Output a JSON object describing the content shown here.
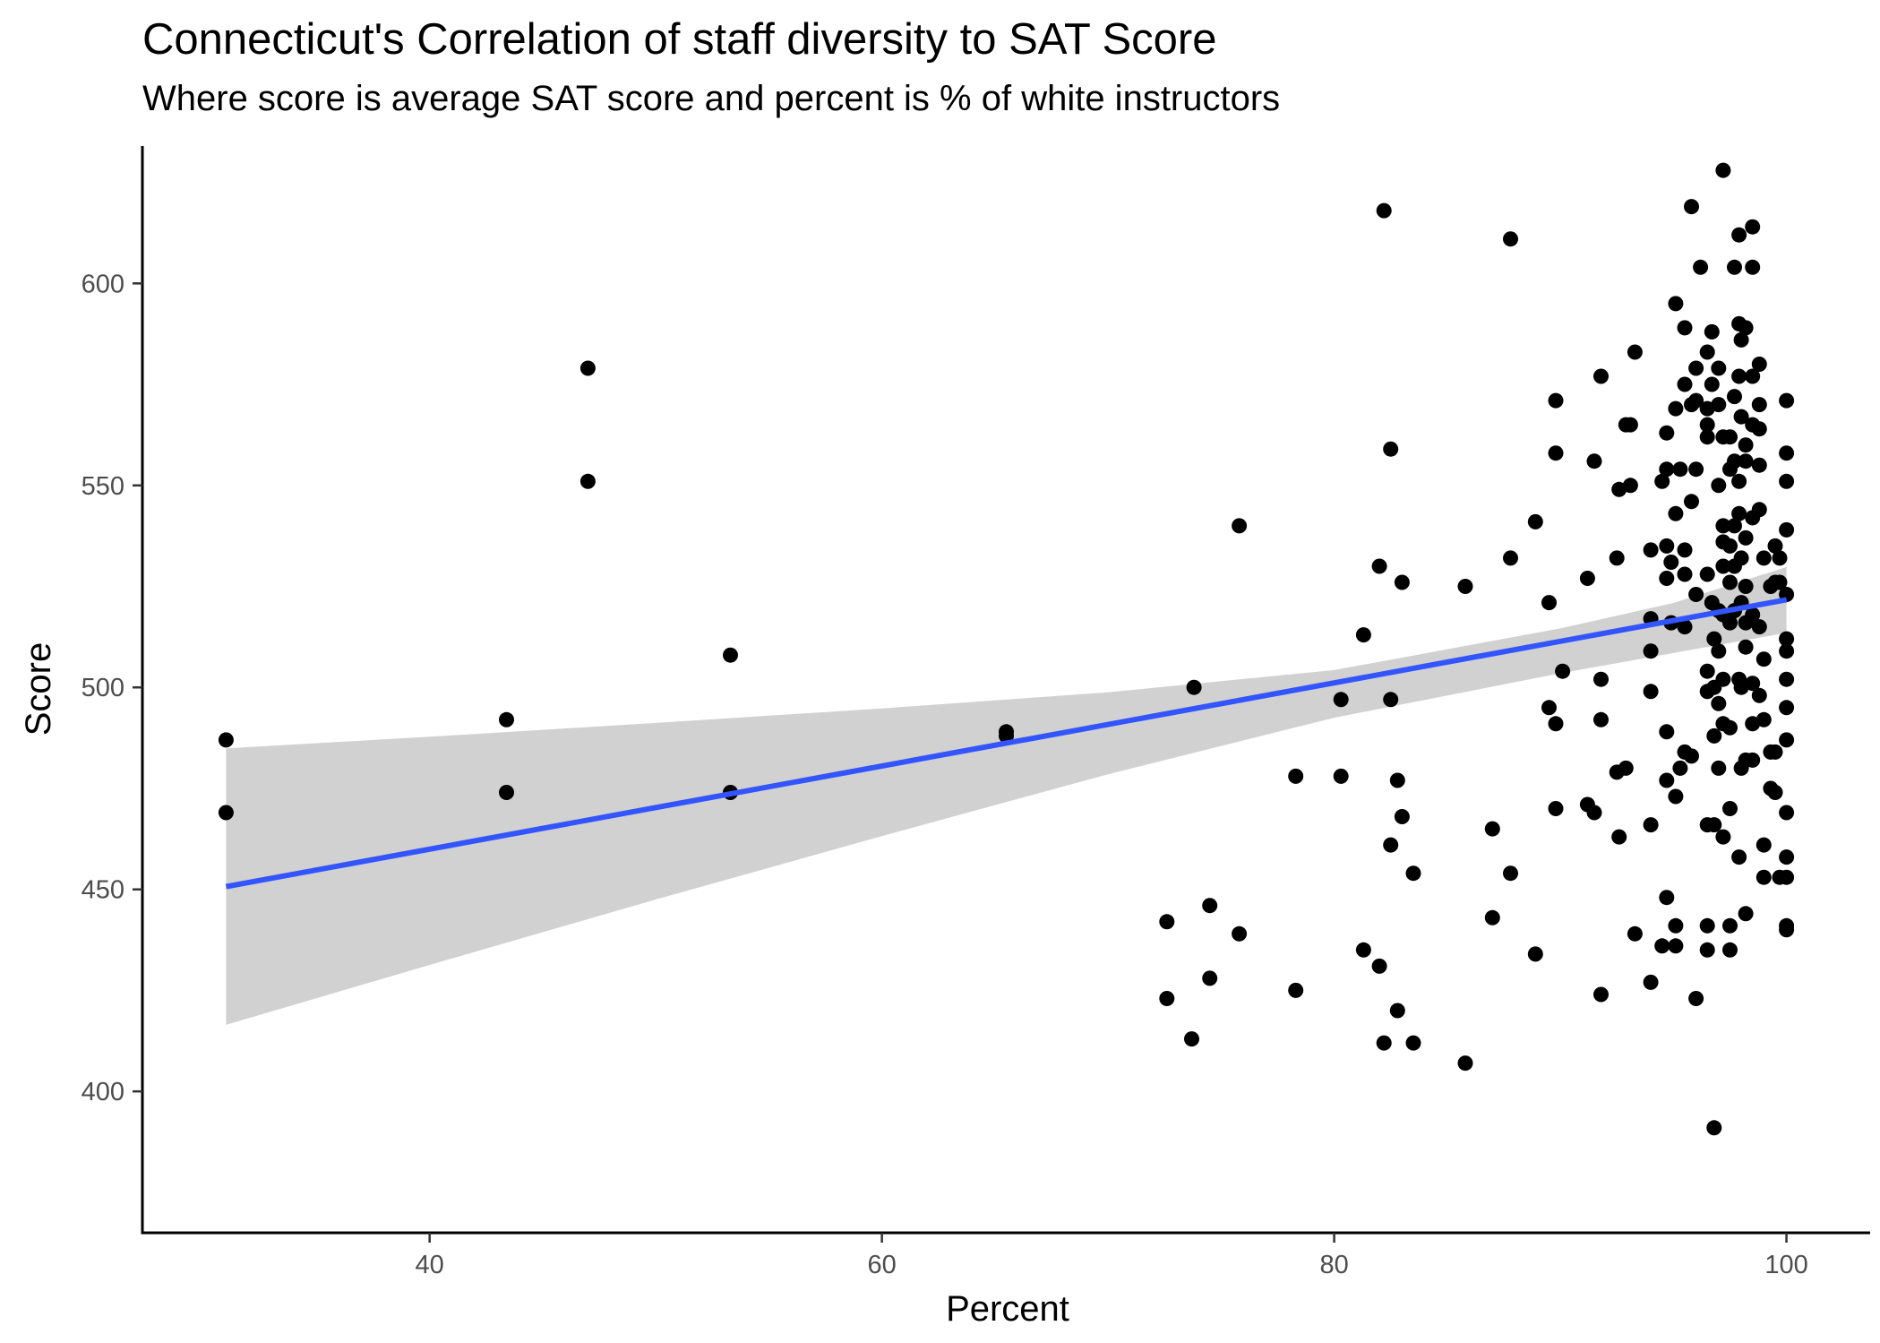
{
  "chart_data": {
    "type": "scatter",
    "title": "Connecticut's Correlation of staff diversity to SAT Score",
    "subtitle": "Where score is average SAT score and percent is % of white instructors",
    "xlabel": "Percent",
    "ylabel": "Score",
    "xlim": [
      27.3,
      103.7
    ],
    "ylim": [
      365,
      634
    ],
    "xticks": [
      40,
      60,
      80,
      100
    ],
    "yticks": [
      400,
      450,
      500,
      550,
      600
    ],
    "grid": false,
    "points": [
      [
        31,
        487
      ],
      [
        31,
        469
      ],
      [
        43.4,
        492
      ],
      [
        43.4,
        474
      ],
      [
        47,
        579
      ],
      [
        47,
        551
      ],
      [
        53.3,
        508
      ],
      [
        53.3,
        474
      ],
      [
        65.5,
        489
      ],
      [
        65.5,
        488
      ],
      [
        73.8,
        500
      ],
      [
        72.6,
        442
      ],
      [
        72.6,
        423
      ],
      [
        73.7,
        413
      ],
      [
        74.5,
        446
      ],
      [
        74.5,
        428
      ],
      [
        75.8,
        540
      ],
      [
        75.8,
        439
      ],
      [
        78.3,
        478
      ],
      [
        78.3,
        425
      ],
      [
        80.3,
        497
      ],
      [
        80.3,
        478
      ],
      [
        81.3,
        513
      ],
      [
        81.3,
        435
      ],
      [
        82,
        530
      ],
      [
        82,
        431
      ],
      [
        82.2,
        618
      ],
      [
        82.2,
        412
      ],
      [
        82.5,
        559
      ],
      [
        82.5,
        497
      ],
      [
        82.5,
        461
      ],
      [
        82.8,
        477
      ],
      [
        82.8,
        420
      ],
      [
        83,
        526
      ],
      [
        83,
        468
      ],
      [
        83.5,
        454
      ],
      [
        83.5,
        412
      ],
      [
        85.8,
        525
      ],
      [
        85.8,
        407
      ],
      [
        87,
        465
      ],
      [
        87,
        443
      ],
      [
        87.8,
        611
      ],
      [
        87.8,
        532
      ],
      [
        87.8,
        454
      ],
      [
        88.9,
        541
      ],
      [
        88.9,
        434
      ],
      [
        89.5,
        521
      ],
      [
        89.5,
        495
      ],
      [
        89.8,
        571
      ],
      [
        89.8,
        558
      ],
      [
        89.8,
        491
      ],
      [
        89.8,
        470
      ],
      [
        90.1,
        504
      ],
      [
        91.2,
        527
      ],
      [
        91.2,
        471
      ],
      [
        91.5,
        556
      ],
      [
        91.5,
        469
      ],
      [
        91.8,
        577
      ],
      [
        91.8,
        502
      ],
      [
        91.8,
        492
      ],
      [
        91.8,
        424
      ],
      [
        92.5,
        532
      ],
      [
        92.5,
        479
      ],
      [
        92.6,
        549
      ],
      [
        92.6,
        463
      ],
      [
        92.9,
        565
      ],
      [
        92.9,
        480
      ],
      [
        93.1,
        550
      ],
      [
        93.1,
        565
      ],
      [
        93.3,
        583
      ],
      [
        93.3,
        439
      ],
      [
        94,
        534
      ],
      [
        94,
        509
      ],
      [
        94,
        499
      ],
      [
        94,
        466
      ],
      [
        94,
        427
      ],
      [
        94,
        517
      ],
      [
        94.5,
        551
      ],
      [
        94.5,
        436
      ],
      [
        94.7,
        563
      ],
      [
        94.7,
        554
      ],
      [
        94.7,
        535
      ],
      [
        94.7,
        527
      ],
      [
        94.7,
        489
      ],
      [
        94.7,
        477
      ],
      [
        94.7,
        448
      ],
      [
        94.9,
        531
      ],
      [
        94.9,
        516
      ],
      [
        95.1,
        595
      ],
      [
        95.1,
        569
      ],
      [
        95.1,
        543
      ],
      [
        95.1,
        473
      ],
      [
        95.1,
        441
      ],
      [
        95.1,
        436
      ],
      [
        95.3,
        554
      ],
      [
        95.3,
        480
      ],
      [
        95.5,
        589
      ],
      [
        95.5,
        575
      ],
      [
        95.5,
        534
      ],
      [
        95.5,
        528
      ],
      [
        95.5,
        515
      ],
      [
        95.5,
        484
      ],
      [
        95.8,
        570
      ],
      [
        95.8,
        546
      ],
      [
        95.8,
        483
      ],
      [
        95.8,
        619
      ],
      [
        96,
        579
      ],
      [
        96,
        571
      ],
      [
        96,
        554
      ],
      [
        96,
        523
      ],
      [
        96,
        423
      ],
      [
        96.2,
        604
      ],
      [
        96.5,
        583
      ],
      [
        96.5,
        569
      ],
      [
        96.5,
        565
      ],
      [
        96.5,
        562
      ],
      [
        96.5,
        528
      ],
      [
        96.5,
        504
      ],
      [
        96.5,
        499
      ],
      [
        96.5,
        466
      ],
      [
        96.5,
        441
      ],
      [
        96.5,
        435
      ],
      [
        96.7,
        588
      ],
      [
        96.7,
        575
      ],
      [
        96.7,
        521
      ],
      [
        96.8,
        512
      ],
      [
        96.8,
        500
      ],
      [
        96.8,
        488
      ],
      [
        96.8,
        466
      ],
      [
        96.8,
        391
      ],
      [
        97,
        579
      ],
      [
        97,
        570
      ],
      [
        97,
        550
      ],
      [
        97,
        509
      ],
      [
        97,
        496
      ],
      [
        97,
        480
      ],
      [
        97,
        519
      ],
      [
        97.2,
        628
      ],
      [
        97.2,
        562
      ],
      [
        97.2,
        540
      ],
      [
        97.2,
        536
      ],
      [
        97.2,
        530
      ],
      [
        97.2,
        518
      ],
      [
        97.2,
        502
      ],
      [
        97.2,
        491
      ],
      [
        97.2,
        463
      ],
      [
        97.5,
        562
      ],
      [
        97.5,
        554
      ],
      [
        97.5,
        535
      ],
      [
        97.5,
        526
      ],
      [
        97.5,
        516
      ],
      [
        97.5,
        490
      ],
      [
        97.5,
        470
      ],
      [
        97.5,
        435
      ],
      [
        97.5,
        441
      ],
      [
        97.7,
        604
      ],
      [
        97.7,
        572
      ],
      [
        97.7,
        556
      ],
      [
        97.7,
        540
      ],
      [
        97.7,
        530
      ],
      [
        97.7,
        519
      ],
      [
        97.9,
        612
      ],
      [
        97.9,
        590
      ],
      [
        97.9,
        577
      ],
      [
        97.9,
        551
      ],
      [
        97.9,
        543
      ],
      [
        97.9,
        502
      ],
      [
        97.9,
        458
      ],
      [
        98,
        586
      ],
      [
        98,
        567
      ],
      [
        98,
        532
      ],
      [
        98,
        521
      ],
      [
        98,
        500
      ],
      [
        98,
        480
      ],
      [
        98.2,
        589
      ],
      [
        98.2,
        560
      ],
      [
        98.2,
        556
      ],
      [
        98.2,
        537
      ],
      [
        98.2,
        525
      ],
      [
        98.2,
        516
      ],
      [
        98.2,
        510
      ],
      [
        98.2,
        482
      ],
      [
        98.2,
        444
      ],
      [
        98.5,
        614
      ],
      [
        98.5,
        604
      ],
      [
        98.5,
        577
      ],
      [
        98.5,
        565
      ],
      [
        98.5,
        542
      ],
      [
        98.5,
        518
      ],
      [
        98.5,
        501
      ],
      [
        98.5,
        491
      ],
      [
        98.5,
        482
      ],
      [
        98.8,
        580
      ],
      [
        98.8,
        570
      ],
      [
        98.8,
        564
      ],
      [
        98.8,
        555
      ],
      [
        98.8,
        544
      ],
      [
        98.8,
        515
      ],
      [
        98.8,
        498
      ],
      [
        99,
        532
      ],
      [
        99,
        507
      ],
      [
        99,
        492
      ],
      [
        99,
        461
      ],
      [
        99,
        453
      ],
      [
        99.3,
        525
      ],
      [
        99.3,
        484
      ],
      [
        99.3,
        475
      ],
      [
        99.5,
        535
      ],
      [
        99.5,
        526
      ],
      [
        99.5,
        484
      ],
      [
        99.5,
        474
      ],
      [
        99.7,
        532
      ],
      [
        99.7,
        526
      ],
      [
        99.7,
        453
      ],
      [
        100,
        571
      ],
      [
        100,
        558
      ],
      [
        100,
        551
      ],
      [
        100,
        539
      ],
      [
        100,
        523
      ],
      [
        100,
        512
      ],
      [
        100,
        509
      ],
      [
        100,
        502
      ],
      [
        100,
        495
      ],
      [
        100,
        487
      ],
      [
        100,
        469
      ],
      [
        100,
        458
      ],
      [
        100,
        453
      ],
      [
        100,
        441
      ],
      [
        100,
        440
      ]
    ],
    "trendline": {
      "method": "linear regression",
      "color": "#3355ff",
      "x": [
        31,
        100
      ],
      "y": [
        450.7,
        521.7
      ],
      "confidence_band": {
        "color": "#cccccc",
        "x": [
          31,
          40,
          50,
          60,
          70,
          80,
          90,
          95,
          100
        ],
        "lower": [
          416.5,
          431.3,
          447.5,
          463.2,
          478.5,
          492.5,
          503.5,
          508.5,
          513.5
        ],
        "upper": [
          484.9,
          487.8,
          491.2,
          494.8,
          498.8,
          504.3,
          514.6,
          520.9,
          529.8
        ]
      }
    },
    "point_color": "#000000"
  }
}
